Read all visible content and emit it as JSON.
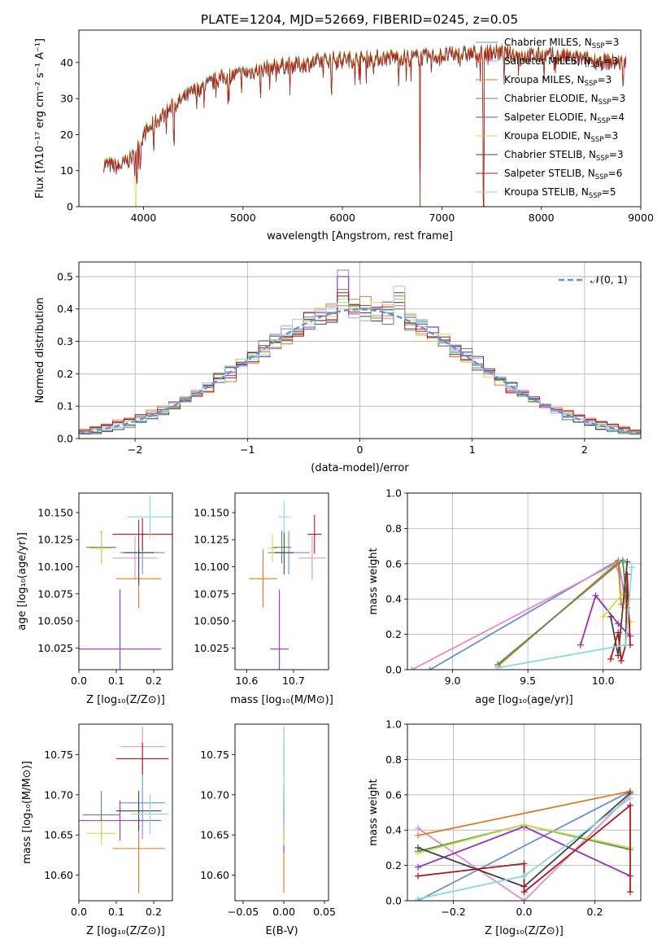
{
  "figure": {
    "title": "PLATE=1204, MJD=52669, FIBERID=0245, z=0.05"
  },
  "legend_series": [
    {
      "name": "Chabrier MILES, N",
      "sub": "SSP",
      "tail": "=3",
      "color": "#6a8fd4"
    },
    {
      "name": "Salpeter MILES, N",
      "sub": "SSP",
      "tail": "=3",
      "color": "#e68bc6"
    },
    {
      "name": "Kroupa MILES, N",
      "sub": "SSP",
      "tail": "=3",
      "color": "#e07a21"
    },
    {
      "name": "Chabrier ELODIE, N",
      "sub": "SSP",
      "tail": "=3",
      "color": "#5a8f5a"
    },
    {
      "name": "Salpeter ELODIE, N",
      "sub": "SSP",
      "tail": "=4",
      "color": "#9b30b8"
    },
    {
      "name": "Kroupa ELODIE, N",
      "sub": "SSP",
      "tail": "=3",
      "color": "#c8e04a"
    },
    {
      "name": "Chabrier STELIB, N",
      "sub": "SSP",
      "tail": "=3",
      "color": "#444444"
    },
    {
      "name": "Salpeter STELIB, N",
      "sub": "SSP",
      "tail": "=6",
      "color": "#b01818"
    },
    {
      "name": "Kroupa STELIB, N",
      "sub": "SSP",
      "tail": "=5",
      "color": "#85dada"
    }
  ],
  "chart_data": [
    {
      "id": "spectrum",
      "type": "line",
      "xlabel": "wavelength [Angstrom, rest frame]",
      "ylabel": "Flux [fλ10⁻¹⁷ erg cm⁻² s⁻¹ A⁻¹]",
      "xlim": [
        3350,
        9000
      ],
      "ylim": [
        0,
        49
      ],
      "xticks": [
        4000,
        5000,
        6000,
        7000,
        8000,
        9000
      ],
      "yticks": [
        0,
        10,
        20,
        30,
        40
      ],
      "grid": false,
      "legend": "right",
      "continuum": [
        [
          3600,
          12
        ],
        [
          3750,
          11
        ],
        [
          3900,
          14
        ],
        [
          4000,
          20
        ],
        [
          4100,
          23
        ],
        [
          4300,
          28
        ],
        [
          4500,
          32
        ],
        [
          4800,
          36
        ],
        [
          5000,
          37
        ],
        [
          5300,
          39
        ],
        [
          5600,
          39.5
        ],
        [
          5900,
          41
        ],
        [
          6200,
          41
        ],
        [
          6500,
          41.5
        ],
        [
          6800,
          41.5
        ],
        [
          7000,
          42
        ],
        [
          7300,
          42.5
        ],
        [
          7500,
          43
        ],
        [
          7800,
          42
        ],
        [
          8100,
          42
        ],
        [
          8400,
          41
        ],
        [
          8800,
          40
        ]
      ],
      "dips": [
        [
          3934,
          8
        ],
        [
          3969,
          6
        ],
        [
          4101,
          6
        ],
        [
          4304,
          9
        ],
        [
          4861,
          6
        ],
        [
          5175,
          6
        ],
        [
          5270,
          4
        ],
        [
          5890,
          8
        ],
        [
          6563,
          6
        ],
        [
          6780,
          41
        ],
        [
          7420,
          42
        ]
      ]
    },
    {
      "id": "residuals",
      "type": "bar",
      "xlabel": "(data-model)/error",
      "ylabel": "Normed distribution",
      "xlim": [
        -2.5,
        2.5
      ],
      "ylim": [
        0,
        0.545
      ],
      "xticks": [
        -2,
        -1,
        0,
        1,
        2
      ],
      "yticks": [
        0.0,
        0.1,
        0.2,
        0.3,
        0.4,
        0.5
      ],
      "grid": true,
      "legend": "top-right",
      "reference_curve": "𝒩(0, 1)",
      "reference_curve_color": "#6a8fd4",
      "bin_width": 0.1,
      "variation": [
        0.03,
        -0.02,
        0.05,
        -0.04,
        0.02,
        0.01,
        -0.03,
        0.04,
        -0.01
      ],
      "peaks": {
        "-0.15": [
          0.52,
          0.5,
          0.41,
          0.46,
          0.5,
          0.43,
          0.44,
          0.45,
          0.42
        ],
        "0.35": [
          0.43,
          0.42,
          0.41,
          0.44,
          0.4,
          0.43,
          0.42,
          0.45,
          0.47
        ]
      }
    },
    {
      "id": "age-vs-Z",
      "type": "scatter",
      "xlabel": "Z [log₁₀(Z/Z⊙)]",
      "ylabel": "age  [log₁₀(age/yr)]",
      "xlim": [
        0.0,
        0.25
      ],
      "ylim": [
        10.005,
        10.168
      ],
      "xticks": [
        0.0,
        0.1,
        0.2
      ],
      "yticks": [
        10.025,
        10.05,
        10.075,
        10.1,
        10.125,
        10.15
      ],
      "points": [
        {
          "x": 0.17,
          "y": 10.113,
          "xerr": 0.06,
          "yerr": 0.02
        },
        {
          "x": 0.15,
          "y": 10.108,
          "xerr": 0.06,
          "yerr": 0.02
        },
        {
          "x": 0.16,
          "y": 10.089,
          "xerr": 0.06,
          "yerr": 0.027
        },
        {
          "x": 0.06,
          "y": 10.118,
          "xerr": 0.04,
          "yerr": 0.015
        },
        {
          "x": 0.11,
          "y": 10.024,
          "xerr": 0.11,
          "yerr": 0.055
        },
        {
          "x": 0.06,
          "y": 10.117,
          "xerr": 0.03,
          "yerr": 0.015
        },
        {
          "x": 0.16,
          "y": 10.113,
          "xerr": 0.04,
          "yerr": 0.03
        },
        {
          "x": 0.17,
          "y": 10.13,
          "xerr": 0.08,
          "yerr": 0.015
        },
        {
          "x": 0.19,
          "y": 10.146,
          "xerr": 0.06,
          "yerr": 0.02
        }
      ]
    },
    {
      "id": "age-vs-mass",
      "type": "scatter",
      "xlabel": "mass [log₁₀(M/M⊙)]",
      "ylabel": "",
      "xlim": [
        10.575,
        10.775
      ],
      "ylim": [
        10.005,
        10.168
      ],
      "xticks": [
        10.6,
        10.7
      ],
      "yticks": [
        10.025,
        10.05,
        10.075,
        10.1,
        10.125,
        10.15
      ],
      "points": [
        {
          "x": 10.69,
          "y": 10.113,
          "xerr": 0.045,
          "yerr": 0.02
        },
        {
          "x": 10.74,
          "y": 10.108,
          "xerr": 0.03,
          "yerr": 0.02
        },
        {
          "x": 10.635,
          "y": 10.089,
          "xerr": 0.03,
          "yerr": 0.027
        },
        {
          "x": 10.675,
          "y": 10.118,
          "xerr": 0.02,
          "yerr": 0.015
        },
        {
          "x": 10.67,
          "y": 10.024,
          "xerr": 0.02,
          "yerr": 0.055
        },
        {
          "x": 10.655,
          "y": 10.117,
          "xerr": 0.01,
          "yerr": 0.013
        },
        {
          "x": 10.68,
          "y": 10.113,
          "xerr": 0.02,
          "yerr": 0.02
        },
        {
          "x": 10.745,
          "y": 10.13,
          "xerr": 0.015,
          "yerr": 0.018
        },
        {
          "x": 10.68,
          "y": 10.146,
          "xerr": 0.012,
          "yerr": 0.015
        }
      ]
    },
    {
      "id": "weight-vs-age",
      "type": "line",
      "xlabel": "age  [log₁₀(age/yr)]",
      "ylabel": "mass weight",
      "xlim": [
        8.7,
        10.25
      ],
      "ylim": [
        0,
        1
      ],
      "xticks": [
        9.0,
        9.5,
        10.0
      ],
      "yticks": [
        0.0,
        0.2,
        0.4,
        0.6,
        0.8,
        1.0
      ],
      "grid": true,
      "series": [
        {
          "color": "#6a8fd4",
          "x": [
            8.85,
            10.1,
            10.15
          ],
          "y": [
            0.0,
            0.62,
            0.38
          ]
        },
        {
          "color": "#e68bc6",
          "x": [
            8.73,
            10.08,
            10.17
          ],
          "y": [
            0.0,
            0.6,
            0.4
          ]
        },
        {
          "color": "#e07a21",
          "x": [
            9.3,
            10.1,
            10.12
          ],
          "y": [
            0.02,
            0.61,
            0.37
          ]
        },
        {
          "color": "#5a8f5a",
          "x": [
            9.3,
            10.13,
            10.16
          ],
          "y": [
            0.03,
            0.62,
            0.35
          ]
        },
        {
          "color": "#9b30b8",
          "x": [
            9.85,
            9.95,
            10.1,
            10.18
          ],
          "y": [
            0.14,
            0.42,
            0.26,
            0.19
          ]
        },
        {
          "color": "#c8e04a",
          "x": [
            10.0,
            10.13,
            10.18
          ],
          "y": [
            0.3,
            0.43,
            0.27
          ]
        },
        {
          "color": "#444444",
          "x": [
            10.05,
            10.1,
            10.16
          ],
          "y": [
            0.3,
            0.08,
            0.61
          ]
        },
        {
          "color": "#b01818",
          "x": [
            10.05,
            10.1,
            10.12,
            10.15,
            10.16,
            10.18
          ],
          "y": [
            0.06,
            0.21,
            0.05,
            0.14,
            0.54,
            0.14
          ]
        },
        {
          "color": "#85dada",
          "x": [
            9.3,
            10.15,
            10.19
          ],
          "y": [
            0.01,
            0.14,
            0.58
          ]
        }
      ]
    },
    {
      "id": "mass-vs-Z",
      "type": "scatter",
      "xlabel": "Z [log₁₀(Z/Z⊙)]",
      "ylabel": "mass [log₁₀(M/M⊙)]",
      "xlim": [
        0.0,
        0.25
      ],
      "ylim": [
        10.568,
        10.788
      ],
      "xticks": [
        0.0,
        0.1,
        0.2
      ],
      "yticks": [
        10.6,
        10.65,
        10.7,
        10.75
      ],
      "points": [
        {
          "x": 0.17,
          "y": 10.69,
          "xerr": 0.06,
          "yerr": 0.045
        },
        {
          "x": 0.17,
          "y": 10.76,
          "xerr": 0.06,
          "yerr": 0.025
        },
        {
          "x": 0.16,
          "y": 10.633,
          "xerr": 0.07,
          "yerr": 0.055
        },
        {
          "x": 0.06,
          "y": 10.675,
          "xerr": 0.05,
          "yerr": 0.03
        },
        {
          "x": 0.11,
          "y": 10.668,
          "xerr": 0.11,
          "yerr": 0.025
        },
        {
          "x": 0.06,
          "y": 10.652,
          "xerr": 0.04,
          "yerr": 0.015
        },
        {
          "x": 0.16,
          "y": 10.68,
          "xerr": 0.06,
          "yerr": 0.025
        },
        {
          "x": 0.17,
          "y": 10.745,
          "xerr": 0.07,
          "yerr": 0.02
        },
        {
          "x": 0.19,
          "y": 10.676,
          "xerr": 0.05,
          "yerr": 0.025
        }
      ]
    },
    {
      "id": "mass-vs-EBV",
      "type": "scatter",
      "xlabel": "E(B-V)",
      "ylabel": "",
      "xlim": [
        -0.06,
        0.055
      ],
      "ylim": [
        10.568,
        10.788
      ],
      "xticks": [
        -0.05,
        0.0,
        0.05
      ],
      "yticks": [
        10.6,
        10.65,
        10.7,
        10.75
      ],
      "points": [
        {
          "x": 0.0,
          "y": 10.69,
          "yerr": 0.045,
          "color": "#6a8fd4"
        },
        {
          "x": 0.0,
          "y": 10.76,
          "yerr": 0.025,
          "color": "#e68bc6"
        },
        {
          "x": 0.0,
          "y": 10.633,
          "yerr": 0.055,
          "color": "#e07a21"
        },
        {
          "x": 0.0,
          "y": 10.675,
          "yerr": 0.03,
          "color": "#5a8f5a"
        },
        {
          "x": 0.0,
          "y": 10.668,
          "yerr": 0.04,
          "color": "#9b30b8"
        },
        {
          "x": 0.0,
          "y": 10.652,
          "yerr": 0.015,
          "color": "#c8e04a"
        },
        {
          "x": 0.0,
          "y": 10.69,
          "yerr": 0.025,
          "color": "#444444"
        },
        {
          "x": 0.0,
          "y": 10.745,
          "yerr": 0.02,
          "color": "#b01818"
        },
        {
          "x": 0.0,
          "y": 10.72,
          "yerr": 0.06,
          "color": "#85dada"
        }
      ]
    },
    {
      "id": "weight-vs-Z",
      "type": "line",
      "xlabel": "Z [log₁₀(Z/Z⊙)]",
      "ylabel": "mass weight",
      "xlim": [
        -0.33,
        0.33
      ],
      "ylim": [
        0,
        1
      ],
      "xticks": [
        -0.2,
        0.0,
        0.2
      ],
      "yticks": [
        0.0,
        0.2,
        0.4,
        0.6,
        0.8,
        1.0
      ],
      "grid": true,
      "series": [
        {
          "color": "#6a8fd4",
          "x": [
            -0.3,
            0.3
          ],
          "y": [
            0.0,
            0.62
          ]
        },
        {
          "color": "#e68bc6",
          "x": [
            -0.3,
            0.0,
            0.3
          ],
          "y": [
            0.41,
            0.0,
            0.6
          ]
        },
        {
          "color": "#e07a21",
          "x": [
            -0.3,
            0.3
          ],
          "y": [
            0.37,
            0.62
          ]
        },
        {
          "color": "#5a8f5a",
          "x": [
            -0.3,
            0.0,
            0.3
          ],
          "y": [
            0.28,
            0.43,
            0.29
          ]
        },
        {
          "color": "#9b30b8",
          "x": [
            -0.3,
            0.0,
            0.3
          ],
          "y": [
            0.19,
            0.42,
            0.14
          ]
        },
        {
          "color": "#c8e04a",
          "x": [
            -0.3,
            0.0,
            0.3
          ],
          "y": [
            0.27,
            0.43,
            0.3
          ]
        },
        {
          "color": "#444444",
          "x": [
            -0.3,
            0.0,
            0.3
          ],
          "y": [
            0.3,
            0.08,
            0.61
          ]
        },
        {
          "color": "#b01818",
          "x": [
            -0.3,
            0.0,
            0.0,
            0.3,
            0.3
          ],
          "y": [
            0.14,
            0.21,
            0.05,
            0.54,
            0.05
          ]
        },
        {
          "color": "#85dada",
          "x": [
            -0.3,
            0.0,
            0.3
          ],
          "y": [
            0.01,
            0.14,
            0.58
          ]
        }
      ]
    }
  ]
}
